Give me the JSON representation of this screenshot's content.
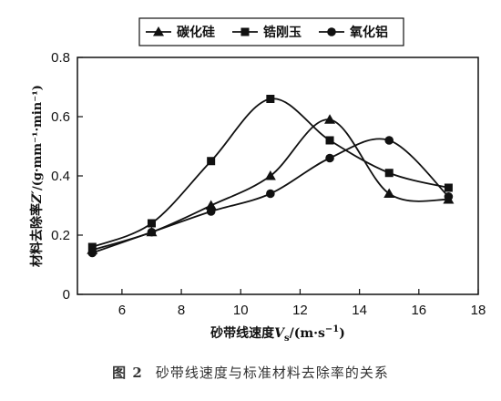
{
  "chart_data": {
    "type": "line",
    "xlabel_main": "砂带线速度",
    "xlabel_var": "V",
    "xlabel_sub": "s",
    "xlabel_unit_pre": "/(m·s",
    "xlabel_unit_sup": "−1",
    "xlabel_unit_post": ")",
    "ylabel_main": "材料去除率",
    "ylabel_var": "Z′",
    "ylabel_unit": "/(g·mm⁻¹·min⁻¹)",
    "xlim": [
      4.5,
      18
    ],
    "ylim": [
      0,
      0.8
    ],
    "xticks": [
      "6",
      "8",
      "10",
      "12",
      "14",
      "16",
      "18"
    ],
    "yticks": [
      "0",
      "0.2",
      "0.4",
      "0.6",
      "0.8"
    ],
    "x": [
      5,
      7,
      9,
      11,
      13,
      15,
      17
    ],
    "series": [
      {
        "name": "碳化硅",
        "marker": "triangle",
        "values": [
          0.15,
          0.21,
          0.3,
          0.4,
          0.59,
          0.34,
          0.32
        ]
      },
      {
        "name": "锆刚玉",
        "marker": "square",
        "values": [
          0.16,
          0.24,
          0.45,
          0.66,
          0.52,
          0.41,
          0.36
        ]
      },
      {
        "name": "氧化铝",
        "marker": "circle",
        "values": [
          0.14,
          0.21,
          0.28,
          0.34,
          0.46,
          0.52,
          0.33
        ]
      }
    ],
    "legend_position": "top",
    "grid": false
  },
  "caption": {
    "figure_number": "图 2",
    "text": "砂带线速度与标准材料去除率的关系"
  }
}
